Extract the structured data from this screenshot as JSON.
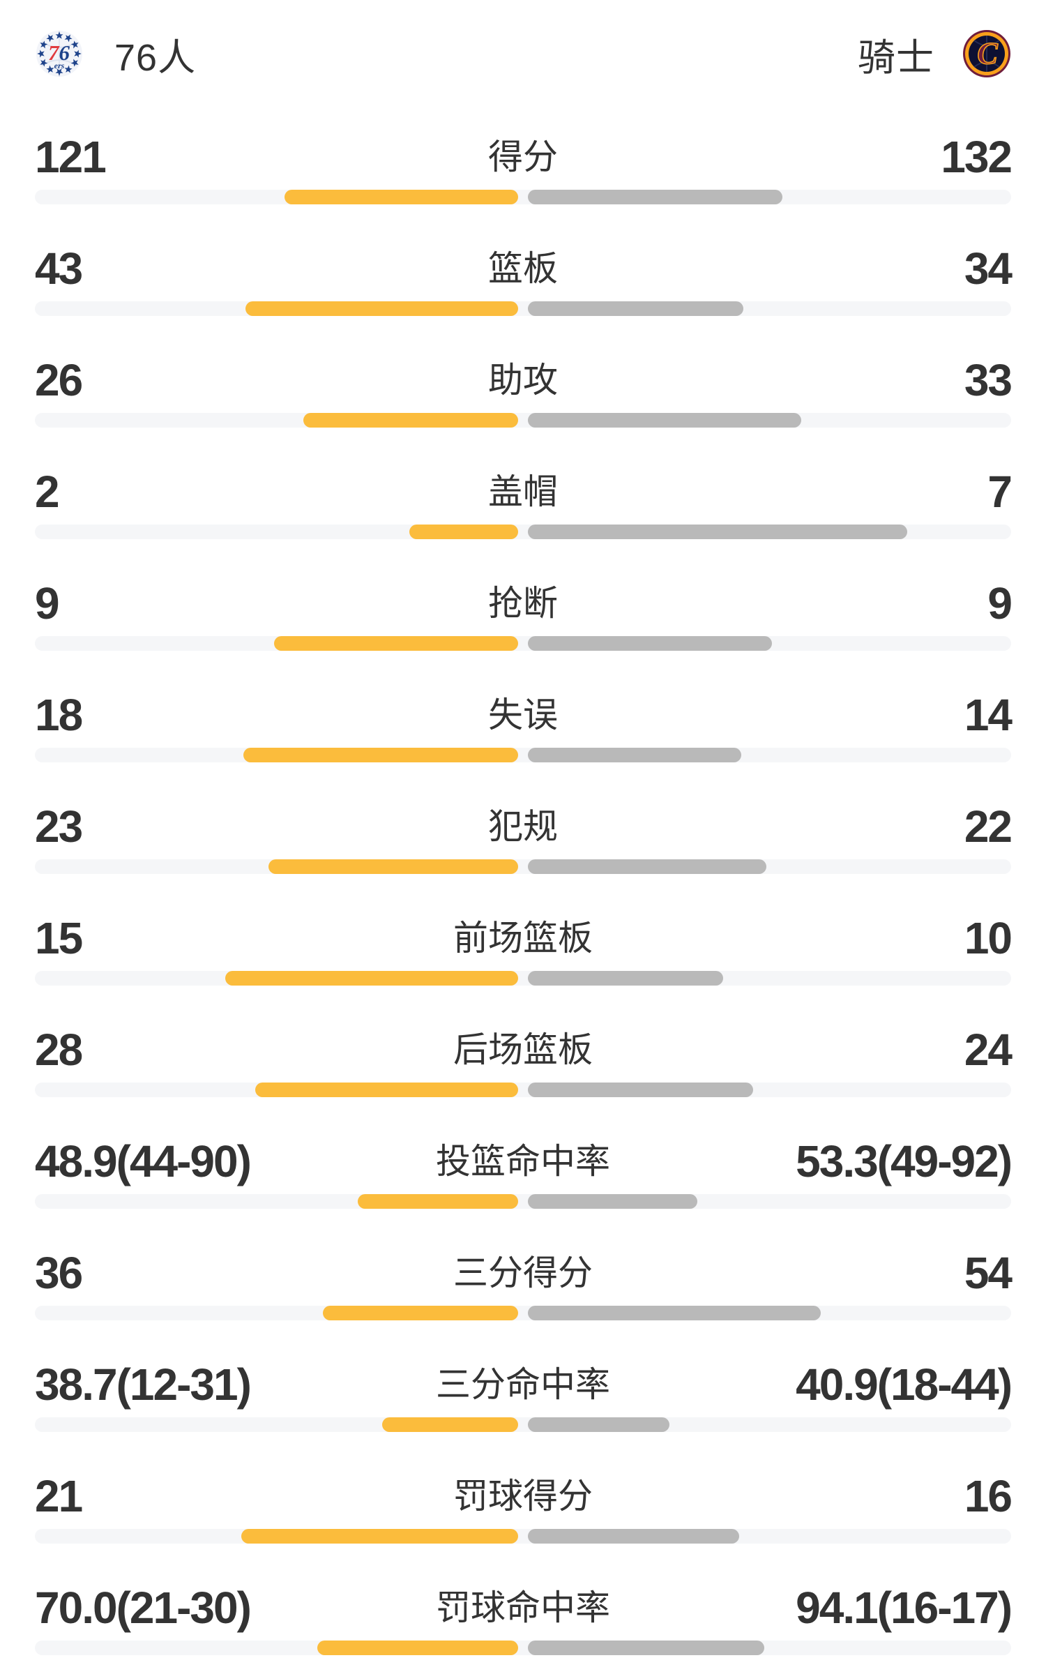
{
  "header": {
    "home": {
      "name": "76人",
      "logo": "sixers-logo"
    },
    "away": {
      "name": "骑士",
      "logo": "cavaliers-logo"
    }
  },
  "colors": {
    "home_bar": "#FBBC3C",
    "away_bar": "#B9B9B9",
    "track": "#F5F6F8",
    "text": "#333333",
    "sixers_red": "#E03A3E",
    "sixers_blue": "#1D428A",
    "cavs_wine": "#6F1D3C",
    "cavs_gold": "#F9A01B",
    "cavs_navy": "#0D1033"
  },
  "chart_data": {
    "type": "bar",
    "orientation": "horizontal-mirrored",
    "teams": [
      "76人",
      "骑士"
    ],
    "legend_position": "none",
    "grid": false,
    "axes": "none",
    "bar_rule": "count rows: width = value/(home+away) of half track; pct rows: width = value/(value+100) of half track",
    "rows": [
      {
        "label": "得分",
        "kind": "count",
        "home": {
          "text": "121",
          "value": 121
        },
        "away": {
          "text": "132",
          "value": 132
        }
      },
      {
        "label": "篮板",
        "kind": "count",
        "home": {
          "text": "43",
          "value": 43
        },
        "away": {
          "text": "34",
          "value": 34
        }
      },
      {
        "label": "助攻",
        "kind": "count",
        "home": {
          "text": "26",
          "value": 26
        },
        "away": {
          "text": "33",
          "value": 33
        }
      },
      {
        "label": "盖帽",
        "kind": "count",
        "home": {
          "text": "2",
          "value": 2
        },
        "away": {
          "text": "7",
          "value": 7
        }
      },
      {
        "label": "抢断",
        "kind": "count",
        "home": {
          "text": "9",
          "value": 9
        },
        "away": {
          "text": "9",
          "value": 9
        }
      },
      {
        "label": "失误",
        "kind": "count",
        "home": {
          "text": "18",
          "value": 18
        },
        "away": {
          "text": "14",
          "value": 14
        }
      },
      {
        "label": "犯规",
        "kind": "count",
        "home": {
          "text": "23",
          "value": 23
        },
        "away": {
          "text": "22",
          "value": 22
        }
      },
      {
        "label": "前场篮板",
        "kind": "count",
        "home": {
          "text": "15",
          "value": 15
        },
        "away": {
          "text": "10",
          "value": 10
        }
      },
      {
        "label": "后场篮板",
        "kind": "count",
        "home": {
          "text": "28",
          "value": 28
        },
        "away": {
          "text": "24",
          "value": 24
        }
      },
      {
        "label": "投篮命中率",
        "kind": "pct",
        "home": {
          "text": "48.9(44-90)",
          "value": 48.9
        },
        "away": {
          "text": "53.3(49-92)",
          "value": 53.3
        }
      },
      {
        "label": "三分得分",
        "kind": "count",
        "home": {
          "text": "36",
          "value": 36
        },
        "away": {
          "text": "54",
          "value": 54
        }
      },
      {
        "label": "三分命中率",
        "kind": "pct",
        "home": {
          "text": "38.7(12-31)",
          "value": 38.7
        },
        "away": {
          "text": "40.9(18-44)",
          "value": 40.9
        }
      },
      {
        "label": "罚球得分",
        "kind": "count",
        "home": {
          "text": "21",
          "value": 21
        },
        "away": {
          "text": "16",
          "value": 16
        }
      },
      {
        "label": "罚球命中率",
        "kind": "pct",
        "home": {
          "text": "70.0(21-30)",
          "value": 70.0
        },
        "away": {
          "text": "94.1(16-17)",
          "value": 94.1
        }
      }
    ]
  }
}
